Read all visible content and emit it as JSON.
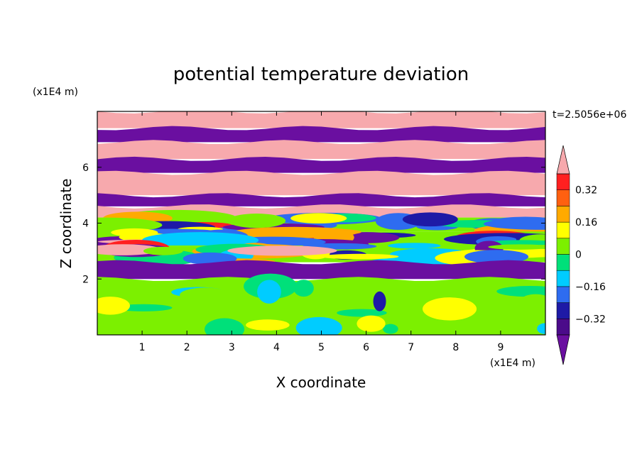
{
  "chart_data": {
    "type": "heatmap",
    "title": "potential temperature deviation",
    "xlabel": "X coordinate",
    "ylabel": "Z coordinate",
    "x_unit": "(x1E4 m)",
    "y_unit": "(x1E4 m)",
    "time_label": "t=2.5056e+06",
    "xlim": [
      0,
      10
    ],
    "ylim": [
      0,
      8
    ],
    "x_ticks": [
      "1",
      "2",
      "3",
      "4",
      "5",
      "6",
      "7",
      "8",
      "9"
    ],
    "y_ticks": [
      "2",
      "4",
      "6"
    ],
    "colorbar": {
      "labels": [
        "0.32",
        "0.16",
        "0",
        "−0.16",
        "−0.32"
      ],
      "levels": [
        -0.4,
        -0.32,
        -0.24,
        -0.16,
        -0.08,
        0,
        0.08,
        0.16,
        0.24,
        0.32,
        0.4
      ],
      "colors": [
        "#4b0b8a",
        "#1e1aa6",
        "#2e6cf0",
        "#00ccff",
        "#00e07a",
        "#7cf000",
        "#ffff00",
        "#ffaa00",
        "#ff6010",
        "#ff2020"
      ],
      "under_color": "#6a0fa0",
      "over_color": "#f7a9ad"
    },
    "field": [
      {
        "z": [
          7.4,
          8.0
        ],
        "value": "over"
      },
      {
        "z": [
          6.9,
          7.4
        ],
        "value": "under"
      },
      {
        "z": [
          6.3,
          6.9
        ],
        "value": "over"
      },
      {
        "z": [
          5.8,
          6.3
        ],
        "value": "under"
      },
      {
        "z": [
          5.0,
          5.8
        ],
        "value": "over"
      },
      {
        "z": [
          4.6,
          5.0
        ],
        "value": "under"
      },
      {
        "z": [
          4.2,
          4.6
        ],
        "value": "over"
      },
      {
        "z": [
          3.7,
          4.2
        ],
        "value": "mixed"
      },
      {
        "z": [
          3.2,
          3.7
        ],
        "value": "mixed"
      },
      {
        "z": [
          2.6,
          3.2
        ],
        "value": "mixed"
      },
      {
        "z": [
          2.0,
          2.6
        ],
        "value": "under"
      },
      {
        "z": [
          0.0,
          2.0
        ],
        "value": 0.04
      }
    ]
  }
}
